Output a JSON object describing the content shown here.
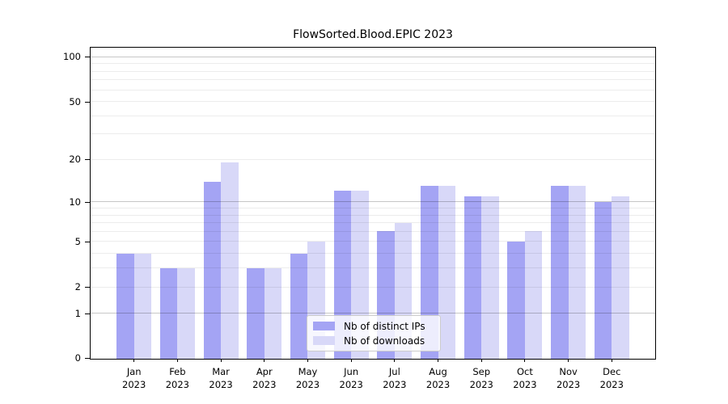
{
  "chart_data": {
    "type": "bar",
    "title": "FlowSorted.Blood.EPIC 2023",
    "categories": [
      "Jan",
      "Feb",
      "Mar",
      "Apr",
      "May",
      "Jun",
      "Jul",
      "Aug",
      "Sep",
      "Oct",
      "Nov",
      "Dec"
    ],
    "category_year": "2023",
    "series": [
      {
        "name": "Nb of distinct IPs",
        "color": "#a4a4f4",
        "values": [
          4,
          3,
          14,
          3,
          4,
          12,
          6,
          13,
          11,
          5,
          13,
          10
        ]
      },
      {
        "name": "Nb of downloads",
        "color": "#d8d8f8",
        "values": [
          4,
          3,
          19,
          3,
          5,
          12,
          7,
          13,
          11,
          6,
          13,
          11
        ]
      }
    ],
    "yscale": "log1p",
    "ylim": [
      0,
      115
    ],
    "y_ticks": [
      0,
      1,
      2,
      5,
      10,
      20,
      50,
      100
    ],
    "grid_major": [
      1,
      10,
      100
    ],
    "grid_minor": [
      2,
      3,
      4,
      5,
      6,
      7,
      8,
      9,
      20,
      30,
      40,
      50,
      60,
      70,
      80,
      90
    ],
    "grid": "on",
    "legend_position": "bottom-center",
    "xlabel": "",
    "ylabel": "",
    "colors": {
      "axis": "#000000",
      "grid_major": "#c7c7c7",
      "grid_minor": "#ebebeb"
    }
  }
}
